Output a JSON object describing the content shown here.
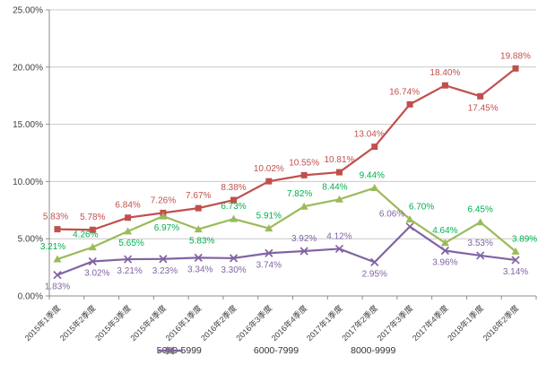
{
  "chart_data": {
    "type": "line",
    "title": "",
    "xlabel": "",
    "ylabel": "",
    "ylim": [
      0,
      25
    ],
    "grid": true,
    "legend_position": "bottom",
    "y_ticks": [
      "0.00%",
      "5.00%",
      "10.00%",
      "15.00%",
      "20.00%",
      "25.00%"
    ],
    "categories": [
      "2015年1季度",
      "2015年2季度",
      "2015年3季度",
      "2015年4季度",
      "2016年1季度",
      "2016年2季度",
      "2016年3季度",
      "2016年4季度",
      "2017年1季度",
      "2017年2季度",
      "2017年3季度",
      "2017年4季度",
      "2018年1季度",
      "2018年2季度"
    ],
    "colors": {
      "grid": "#C9C9C9",
      "axis": "#8C8C8C",
      "axis_text": "#404040",
      "background": "#FFFFFF"
    },
    "series": [
      {
        "name": "5000-5999",
        "marker": "square",
        "color": "#C0504D",
        "label_color": "#C0504D",
        "values": [
          5.83,
          5.78,
          6.84,
          7.26,
          7.67,
          8.38,
          10.02,
          10.55,
          10.81,
          13.04,
          16.74,
          18.4,
          17.45,
          19.88
        ],
        "labels": [
          "5.83%",
          "5.78%",
          "6.84%",
          "7.26%",
          "7.67%",
          "8.38%",
          "10.02%",
          "10.55%",
          "10.81%",
          "13.04%",
          "16.74%",
          "18.40%",
          "17.45%",
          "19.88%"
        ],
        "label_pos": [
          "above",
          "above",
          "above",
          "above",
          "above",
          "above",
          "above",
          "above",
          "above",
          "above",
          "above",
          "above",
          "below",
          "above"
        ],
        "label_dx": [
          -2,
          0,
          0,
          0,
          0,
          0,
          0,
          0,
          0,
          -6,
          -6,
          0,
          3,
          0
        ]
      },
      {
        "name": "6000-7999",
        "marker": "triangle",
        "color": "#9BBB59",
        "label_color": "#00B050",
        "values": [
          3.21,
          4.26,
          5.65,
          6.97,
          5.83,
          6.73,
          5.91,
          7.82,
          8.44,
          9.44,
          6.7,
          4.64,
          6.45,
          3.89
        ],
        "labels": [
          "3.21%",
          "4.26%",
          "5.65%",
          "6.97%",
          "5.83%",
          "6.73%",
          "5.91%",
          "7.82%",
          "8.44%",
          "9.44%",
          "6.70%",
          "4.64%",
          "6.45%",
          "3.89%"
        ],
        "label_pos": [
          "above",
          "above",
          "below",
          "below",
          "below",
          "above",
          "above",
          "above",
          "above",
          "above",
          "above",
          "above",
          "above",
          "above"
        ],
        "label_dx": [
          -5,
          -8,
          4,
          4,
          4,
          0,
          0,
          -5,
          -5,
          -3,
          13,
          0,
          0,
          10
        ]
      },
      {
        "name": "8000-9999",
        "marker": "x",
        "color": "#8064A2",
        "label_color": "#8064A2",
        "values": [
          1.83,
          3.02,
          3.21,
          3.23,
          3.34,
          3.3,
          3.74,
          3.92,
          4.12,
          2.95,
          6.06,
          3.96,
          3.53,
          3.14
        ],
        "labels": [
          "1.83%",
          "3.02%",
          "3.21%",
          "3.23%",
          "3.34%",
          "3.30%",
          "3.74%",
          "3.92%",
          "4.12%",
          "2.95%",
          "6.06%",
          "3.96%",
          "3.53%",
          "3.14%"
        ],
        "label_pos": [
          "below",
          "below",
          "below",
          "below",
          "below",
          "below",
          "below",
          "above",
          "above",
          "below",
          "above",
          "below",
          "above",
          "below"
        ],
        "label_dx": [
          0,
          5,
          2,
          2,
          2,
          0,
          0,
          0,
          0,
          0,
          -20,
          0,
          0,
          0
        ]
      }
    ]
  }
}
